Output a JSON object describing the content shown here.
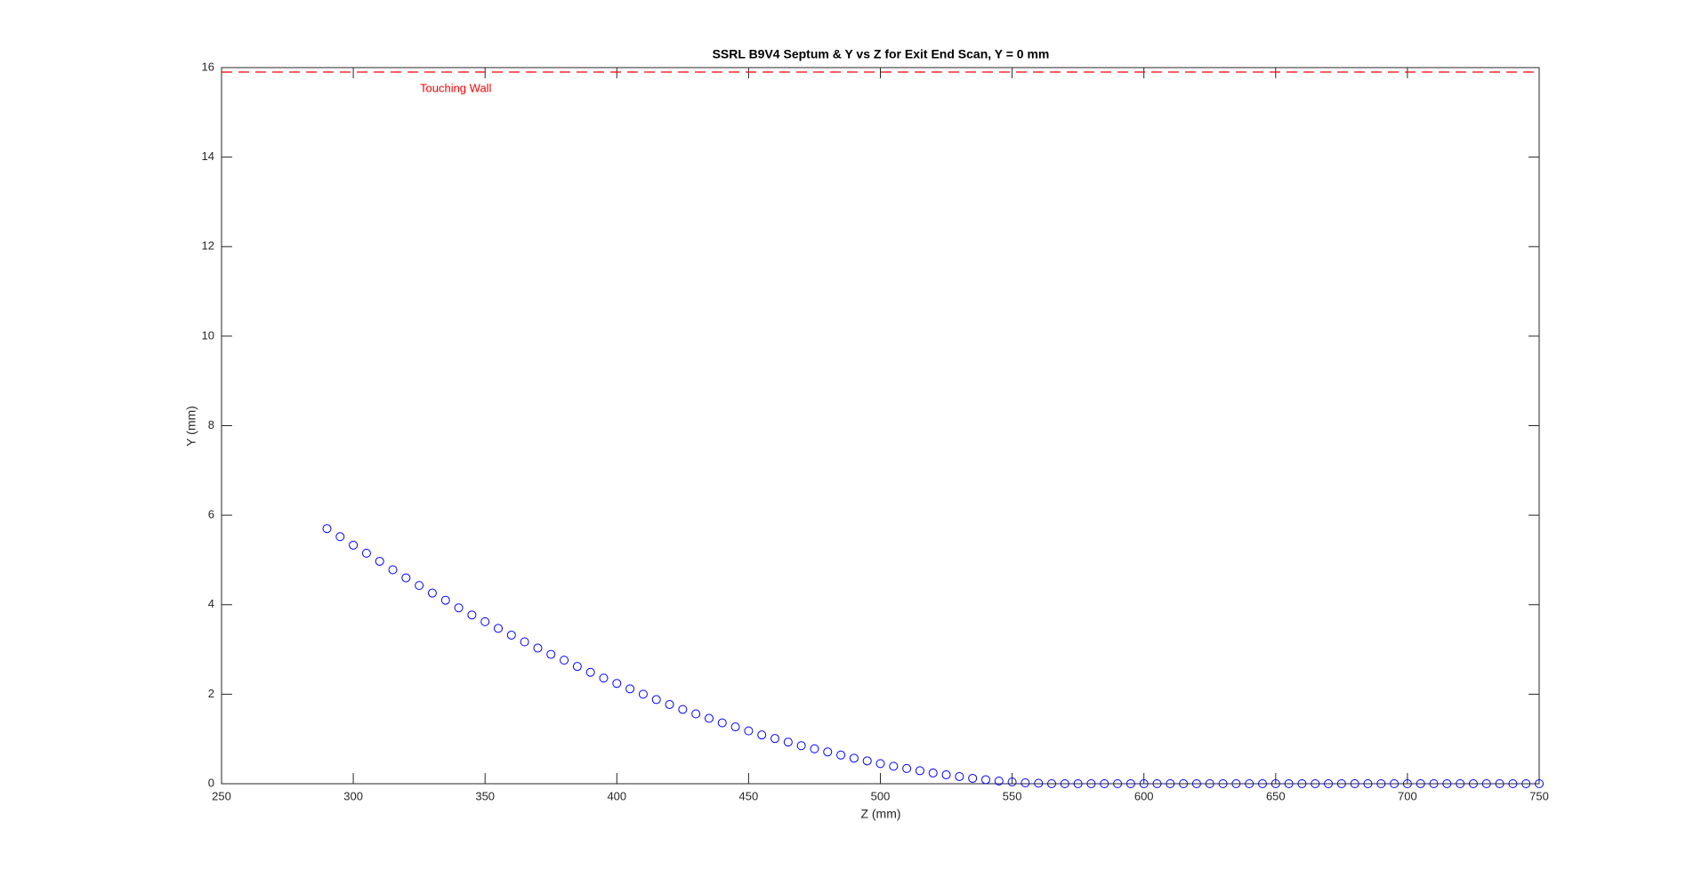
{
  "chart_data": {
    "type": "scatter",
    "title": "SSRL B9V4 Septum & Y vs Z for Exit End Scan, Y = 0 mm",
    "xlabel": "Z (mm)",
    "ylabel": "Y (mm)",
    "xlim": [
      250,
      750
    ],
    "ylim": [
      0,
      16
    ],
    "xticks": [
      250,
      300,
      350,
      400,
      450,
      500,
      550,
      600,
      650,
      700,
      750
    ],
    "yticks": [
      0,
      2,
      4,
      6,
      8,
      10,
      12,
      14,
      16
    ],
    "reference_lines": [
      {
        "y": 15.9,
        "label": "Touching Wall",
        "color": "#ff0000"
      }
    ],
    "series": [
      {
        "color": "#0000ff",
        "x": [
          290,
          295,
          300,
          305,
          310,
          315,
          320,
          325,
          330,
          335,
          340,
          345,
          350,
          355,
          360,
          365,
          370,
          375,
          380,
          385,
          390,
          395,
          400,
          405,
          410,
          415,
          420,
          425,
          430,
          435,
          440,
          445,
          450,
          455,
          460,
          465,
          470,
          475,
          480,
          485,
          490,
          495,
          500,
          505,
          510,
          515,
          520,
          525,
          530,
          535,
          540,
          545,
          550,
          555,
          560,
          565,
          570,
          575,
          580,
          585,
          590,
          595,
          600,
          605,
          610,
          615,
          620,
          625,
          630,
          635,
          640,
          645,
          650,
          655,
          660,
          665,
          670,
          675,
          680,
          685,
          690,
          695,
          700,
          705,
          710,
          715,
          720,
          725,
          730,
          735,
          740,
          745,
          750
        ],
        "values": [
          5.7,
          5.52,
          5.33,
          5.15,
          4.97,
          4.78,
          4.6,
          4.43,
          4.26,
          4.1,
          3.93,
          3.77,
          3.62,
          3.47,
          3.32,
          3.17,
          3.03,
          2.89,
          2.76,
          2.62,
          2.49,
          2.36,
          2.24,
          2.12,
          2.0,
          1.88,
          1.77,
          1.66,
          1.56,
          1.46,
          1.36,
          1.27,
          1.18,
          1.09,
          1.01,
          0.93,
          0.85,
          0.78,
          0.71,
          0.64,
          0.57,
          0.51,
          0.45,
          0.39,
          0.34,
          0.29,
          0.24,
          0.2,
          0.16,
          0.12,
          0.09,
          0.06,
          0.04,
          0.02,
          0.01,
          0,
          0,
          0,
          0,
          0,
          0,
          0,
          0,
          0,
          0,
          0,
          0,
          0,
          0,
          0,
          0,
          0,
          0,
          0,
          0,
          0,
          0,
          0,
          0,
          0,
          0,
          0,
          0,
          0,
          0,
          0,
          0,
          0,
          0,
          0,
          0,
          0,
          0
        ]
      }
    ]
  }
}
